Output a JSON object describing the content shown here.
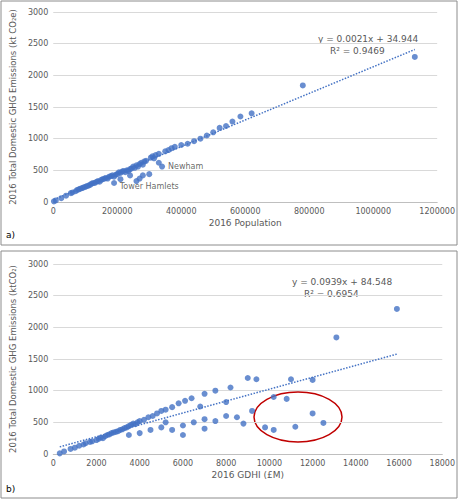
{
  "chart_data": [
    {
      "type": "scatter",
      "panel_label": "a)",
      "x_label": "2016 Population",
      "y_label": "2016 Total Domestic GHG Emissions (kt CO₂e)",
      "xlim": [
        0,
        1200000
      ],
      "xticks": [
        0,
        200000,
        400000,
        600000,
        800000,
        1000000,
        1200000
      ],
      "ylim": [
        0,
        3000
      ],
      "yticks": [
        0,
        500,
        1000,
        1500,
        2000,
        2500,
        3000
      ],
      "grid": true,
      "color": "#4472c4",
      "marker": "circle",
      "x": [
        2000,
        8000,
        25000,
        40000,
        55000,
        60000,
        70000,
        75000,
        80000,
        85000,
        90000,
        95000,
        100000,
        105000,
        110000,
        115000,
        120000,
        125000,
        130000,
        135000,
        140000,
        145000,
        150000,
        155000,
        160000,
        165000,
        170000,
        175000,
        180000,
        185000,
        190000,
        195000,
        200000,
        205000,
        210000,
        215000,
        220000,
        225000,
        230000,
        235000,
        240000,
        245000,
        250000,
        255000,
        260000,
        265000,
        270000,
        275000,
        280000,
        285000,
        290000,
        305000,
        310000,
        315000,
        320000,
        330000,
        350000,
        360000,
        370000,
        380000,
        400000,
        420000,
        440000,
        460000,
        480000,
        500000,
        520000,
        540000,
        560000,
        585000,
        620000,
        780000,
        1130000,
        190000,
        210000,
        240000,
        260000,
        270000,
        280000,
        330000,
        300000,
        340000
      ],
      "values": [
        10,
        25,
        60,
        100,
        140,
        150,
        170,
        190,
        200,
        210,
        220,
        230,
        240,
        250,
        260,
        270,
        290,
        300,
        300,
        320,
        330,
        320,
        350,
        360,
        370,
        380,
        370,
        400,
        410,
        420,
        400,
        430,
        440,
        470,
        460,
        480,
        490,
        470,
        500,
        490,
        520,
        530,
        560,
        540,
        580,
        560,
        600,
        620,
        590,
        640,
        650,
        700,
        720,
        690,
        740,
        760,
        800,
        820,
        850,
        870,
        900,
        920,
        960,
        1000,
        1050,
        1100,
        1170,
        1200,
        1270,
        1350,
        1400,
        1840,
        2290,
        300,
        360,
        420,
        330,
        370,
        420,
        620,
        440,
        560
      ],
      "trendline": {
        "slope": 0.0021,
        "intercept": 34.944,
        "line_style": "dotted",
        "equation": "y = 0.0021x + 34.944",
        "r2": 0.9469,
        "r2_label": "R² = 0.9469"
      },
      "annotations": [
        {
          "text": "Newham",
          "x": 340000,
          "y": 560
        },
        {
          "text": "Tower Hamlets",
          "x": 300000,
          "y": 440
        }
      ]
    },
    {
      "type": "scatter",
      "panel_label": "b)",
      "x_label": "2016 GDHI (£M)",
      "y_label": "2016 Total Domestic GHG Emissions (ktCO₂)",
      "xlim": [
        0,
        18000
      ],
      "xticks": [
        0,
        2000,
        4000,
        6000,
        8000,
        10000,
        12000,
        14000,
        16000,
        18000
      ],
      "ylim": [
        0,
        3000
      ],
      "yticks": [
        0,
        500,
        1000,
        1500,
        2000,
        2500,
        3000
      ],
      "grid": true,
      "color": "#4472c4",
      "marker": "circle",
      "x": [
        300,
        500,
        800,
        1000,
        1200,
        1400,
        1500,
        1700,
        1800,
        2000,
        2100,
        2200,
        2300,
        2400,
        2500,
        2600,
        2700,
        2800,
        2900,
        3000,
        3100,
        3200,
        3300,
        3400,
        3500,
        3600,
        3700,
        3800,
        3900,
        4000,
        4200,
        4400,
        4600,
        4800,
        5000,
        5200,
        5500,
        5800,
        6100,
        6400,
        7000,
        7500,
        8200,
        9000,
        9400,
        11000,
        12000,
        13100,
        15900,
        3500,
        4000,
        4500,
        5000,
        5500,
        6000,
        6500,
        7000,
        7500,
        8000,
        8500,
        8800,
        9200,
        9800,
        10200,
        10800,
        11200,
        12000,
        12500,
        6000,
        7000,
        5200,
        10200,
        8000,
        6800
      ],
      "values": [
        10,
        40,
        80,
        100,
        130,
        150,
        170,
        190,
        200,
        220,
        240,
        260,
        250,
        280,
        300,
        310,
        330,
        340,
        350,
        360,
        380,
        390,
        410,
        420,
        440,
        460,
        480,
        470,
        500,
        520,
        540,
        580,
        600,
        640,
        680,
        700,
        740,
        800,
        840,
        880,
        950,
        1000,
        1050,
        1200,
        1180,
        1180,
        1170,
        1840,
        2290,
        300,
        330,
        380,
        420,
        380,
        450,
        500,
        550,
        520,
        600,
        580,
        480,
        680,
        420,
        380,
        870,
        430,
        640,
        490,
        300,
        400,
        500,
        900,
        820,
        750
      ],
      "trendline": {
        "slope": 0.0939,
        "intercept": 84.548,
        "line_style": "dotted",
        "equation": "y = 0.0939x + 84.548",
        "r2": 0.6954,
        "r2_label": "R² = 0.6954"
      },
      "annotations": []
    }
  ]
}
